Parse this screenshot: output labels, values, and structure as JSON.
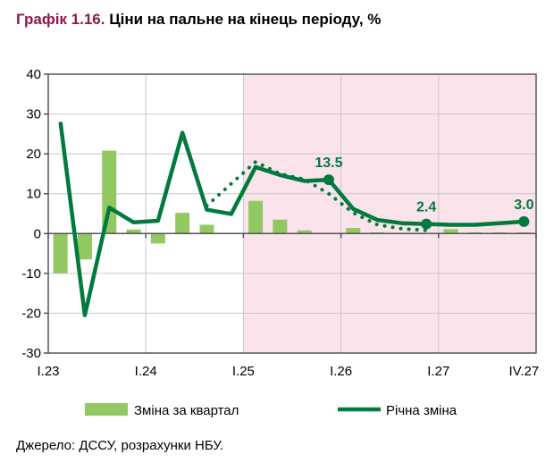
{
  "title": {
    "number": "Графік 1.16.",
    "text": "Ціни на пальне на кінець періоду, %"
  },
  "source": "Джерело: ДССУ, розрахунки НБУ.",
  "chart_data": {
    "type": "bar+line",
    "categories": [
      "I.23",
      "II.23",
      "III.23",
      "IV.23",
      "I.24",
      "II.24",
      "III.24",
      "IV.24",
      "I.25",
      "II.25",
      "III.25",
      "IV.25",
      "I.26",
      "II.26",
      "III.26",
      "IV.26",
      "I.27",
      "II.27",
      "III.27",
      "IV.27"
    ],
    "x_tick_labels": [
      "I.23",
      "I.24",
      "I.25",
      "I.26",
      "I.27",
      "IV.27"
    ],
    "ylim": [
      -30,
      40
    ],
    "y_ticks": [
      -30,
      -20,
      -10,
      0,
      10,
      20,
      30,
      40
    ],
    "grid": true,
    "forecast_shading_start": "I.25",
    "legend_position": "bottom",
    "series": [
      {
        "name": "Зміна за квартал",
        "type": "bar",
        "color": "#92c862",
        "values": [
          -10,
          -6.5,
          20.8,
          1.0,
          -2.5,
          5.2,
          2.2,
          0,
          8.2,
          3.5,
          0.8,
          0,
          1.4,
          0.3,
          0,
          0,
          1.1,
          0.3,
          0.3,
          0.3
        ]
      },
      {
        "name": "Річна зміна",
        "type": "line",
        "color": "#007a3d",
        "values": [
          28,
          -20.5,
          6.5,
          2.8,
          3.2,
          25.3,
          6.0,
          4.9,
          16.7,
          14.7,
          13.2,
          13.5,
          6.2,
          3.4,
          2.6,
          2.4,
          2.2,
          2.2,
          2.6,
          3.0
        ]
      },
      {
        "type": "line-dotted",
        "color": "#007a3d",
        "values": [
          null,
          null,
          null,
          null,
          null,
          null,
          7.0,
          12.5,
          18.0,
          15.0,
          13.6,
          10.0,
          5.2,
          2.2,
          1.2,
          0.8,
          null,
          null,
          null,
          null
        ]
      }
    ],
    "annotations": [
      {
        "category": "IV.25",
        "label": "13.5"
      },
      {
        "category": "IV.26",
        "label": "2.4"
      },
      {
        "category": "IV.27",
        "label": "3.0"
      }
    ],
    "colors": {
      "shading": "#fae3eb",
      "grid": "#c8c8c8",
      "axis": "#555555",
      "title_accent": "#8b1a4a"
    }
  }
}
